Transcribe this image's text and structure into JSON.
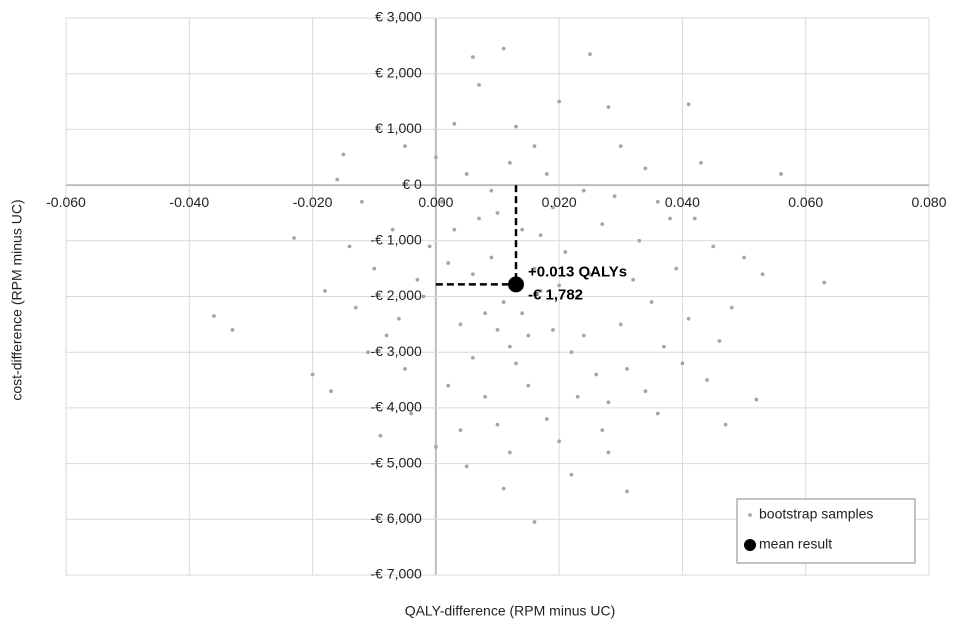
{
  "chart_data": {
    "type": "scatter",
    "xlabel": "QALY-difference (RPM minus UC)",
    "ylabel": "cost-difference (RPM minus UC)",
    "xlim": [
      -0.06,
      0.08
    ],
    "ylim": [
      -7000,
      3000
    ],
    "xticks": [
      {
        "value": -0.06,
        "label": "-0.060"
      },
      {
        "value": -0.04,
        "label": "-0.040"
      },
      {
        "value": -0.02,
        "label": "-0.020"
      },
      {
        "value": 0,
        "label": "0.000"
      },
      {
        "value": 0.02,
        "label": "0.020"
      },
      {
        "value": 0.04,
        "label": "0.040"
      },
      {
        "value": 0.06,
        "label": "0.060"
      },
      {
        "value": 0.08,
        "label": "0.080"
      }
    ],
    "yticks": [
      {
        "value": 3000,
        "label": "€ 3,000"
      },
      {
        "value": 2000,
        "label": "€ 2,000"
      },
      {
        "value": 1000,
        "label": "€ 1,000"
      },
      {
        "value": 0,
        "label": "€ 0"
      },
      {
        "value": -1000,
        "label": "-€ 1,000"
      },
      {
        "value": -2000,
        "label": "-€ 2,000"
      },
      {
        "value": -3000,
        "label": "-€ 3,000"
      },
      {
        "value": -4000,
        "label": "-€ 4,000"
      },
      {
        "value": -5000,
        "label": "-€ 5,000"
      },
      {
        "value": -6000,
        "label": "-€ 6,000"
      },
      {
        "value": -7000,
        "label": "-€ 7,000"
      }
    ],
    "grid": true,
    "legend": "lower right",
    "series": [
      {
        "name": "bootstrap samples",
        "color": "#a6a6a6",
        "x": [
          -0.036,
          -0.033,
          0.063,
          0.056,
          0.041,
          0.025,
          0.011,
          0.006,
          0.016,
          0.031,
          0.011,
          0.007,
          -0.023,
          -0.015,
          0.052,
          0.047,
          0.02,
          0.028,
          0.013,
          0.003,
          -0.005,
          -0.012,
          -0.018,
          -0.02,
          -0.017,
          -0.009,
          -0.004,
          0,
          0.005,
          0.022,
          0.027,
          0.036,
          0.04,
          0.044,
          0.048,
          0.05,
          0.045,
          0.038,
          0.034,
          0.043,
          0.03,
          0.018,
          0.009,
          0.001,
          -0.007,
          -0.01,
          -0.013,
          -0.008,
          -0.005,
          -0.002,
          0.002,
          0.004,
          0.006,
          0.008,
          0.01,
          0.012,
          0.014,
          0.016,
          0.017,
          0.019,
          0.021,
          0.023,
          0.024,
          0.026,
          0.028,
          0.03,
          0.032,
          0.033,
          0.035,
          0.037,
          0.039,
          0.041,
          0.015,
          0.018,
          0.02,
          0.013,
          0.011,
          0.009,
          0.007,
          0.005,
          0.003,
          -0.001,
          -0.003,
          0.01,
          0.022,
          0.025,
          0.027,
          0.029,
          0.012,
          0.016,
          0.024,
          0.031,
          0.034,
          0.019,
          0.017,
          0.014,
          0.008,
          0.006,
          0.002,
          -0.006,
          -0.011,
          -0.014,
          -0.016,
          0,
          0.042,
          0.046,
          0.053,
          0.023,
          0.028,
          0.012,
          0.004,
          0.036,
          0.02,
          0.01,
          0.015
        ],
        "y": [
          -2350,
          -2600,
          -1750,
          200,
          1450,
          2350,
          2450,
          2300,
          -6050,
          -5500,
          -5450,
          1800,
          -950,
          550,
          -3850,
          -4300,
          1500,
          1400,
          1050,
          1100,
          700,
          -300,
          -1900,
          -3400,
          -3700,
          -4500,
          -4100,
          -4700,
          -5050,
          -5200,
          -4400,
          -4100,
          -3200,
          -3500,
          -2200,
          -1300,
          -1100,
          -600,
          300,
          400,
          700,
          200,
          -100,
          -300,
          -800,
          -1500,
          -2200,
          -2700,
          -3300,
          -2000,
          -1400,
          -2500,
          -3100,
          -3800,
          -4300,
          -2900,
          -2300,
          -1500,
          -900,
          -400,
          -1200,
          -2000,
          -2700,
          -3400,
          -3900,
          -2500,
          -1700,
          -1000,
          -2100,
          -2900,
          -1500,
          -2400,
          -3600,
          -4200,
          -4600,
          -3200,
          -2100,
          -1300,
          -600,
          200,
          -800,
          -1100,
          -1700,
          -2600,
          -3000,
          -1600,
          -700,
          -200,
          400,
          700,
          -100,
          -3300,
          -3700,
          -2600,
          -1900,
          -800,
          -2300,
          -1600,
          -3600,
          -2400,
          -3000,
          -1100,
          100,
          500,
          -600,
          -2800,
          -1600,
          -3800,
          -4800,
          -4800,
          -4400,
          -300,
          -1800,
          -500,
          -2700
        ]
      },
      {
        "name": "mean result",
        "color": "#000000",
        "x": [
          0.013
        ],
        "y": [
          -1782
        ]
      }
    ],
    "annotations": [
      {
        "text": "+0.013 QALYs"
      },
      {
        "text": "-€ 1,782"
      }
    ]
  }
}
